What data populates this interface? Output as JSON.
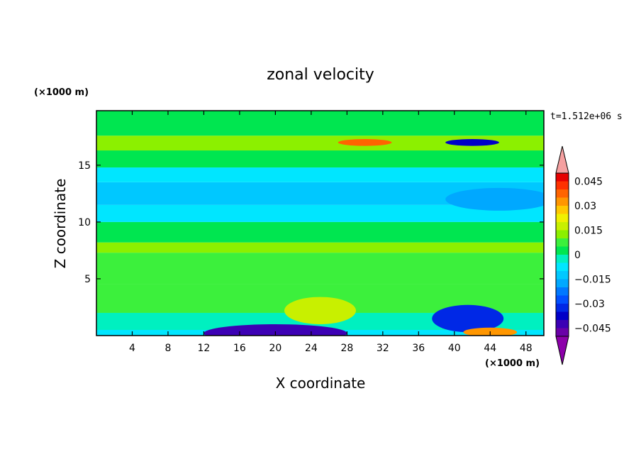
{
  "chart_data": {
    "type": "heatmap",
    "title": "zonal velocity",
    "xlabel": "X coordinate",
    "ylabel": "Z coordinate",
    "x_unit_label": "(×1000 m)",
    "z_unit_label": "(×1000 m)",
    "time_label": "t=1.512e+06 s",
    "xlim": [
      0,
      50
    ],
    "zlim": [
      0,
      19.8
    ],
    "x_ticks": [
      4,
      8,
      12,
      16,
      20,
      24,
      28,
      32,
      36,
      40,
      44,
      48
    ],
    "z_ticks": [
      5,
      10,
      15
    ],
    "grid": false,
    "colorbar": {
      "levels": [
        -0.05,
        -0.045,
        -0.04,
        -0.035,
        -0.03,
        -0.025,
        -0.02,
        -0.015,
        -0.01,
        -0.005,
        0,
        0.005,
        0.01,
        0.015,
        0.02,
        0.025,
        0.03,
        0.035,
        0.04,
        0.045,
        0.05
      ],
      "tick_labels": [
        "0.045",
        "0.03",
        "0.015",
        "0",
        "−0.015",
        "−0.03",
        "−0.045"
      ],
      "tick_values": [
        0.045,
        0.03,
        0.015,
        0,
        -0.015,
        -0.03,
        -0.045
      ],
      "colors": [
        "#6a00a8",
        "#3c00b4",
        "#0000c8",
        "#0028e6",
        "#0050ff",
        "#0078ff",
        "#00a8ff",
        "#00c8ff",
        "#00e6ff",
        "#00f0c0",
        "#00e650",
        "#3cf03c",
        "#8cf000",
        "#c8f000",
        "#f0f000",
        "#ffc800",
        "#ff9600",
        "#ff6400",
        "#ff3200",
        "#e60000"
      ],
      "under_color": "#8c00aa",
      "over_color": "#f5a0a0",
      "placement": "right"
    },
    "bands": [
      {
        "z": [
          0,
          0.5
        ],
        "value": -0.01
      },
      {
        "z": [
          0.5,
          2
        ],
        "value": -0.005
      },
      {
        "z": [
          2,
          4.5
        ],
        "value": 0.005
      },
      {
        "z": [
          4.5,
          7.3
        ],
        "value": 0.008
      },
      {
        "z": [
          7.3,
          8.2
        ],
        "value": 0.012
      },
      {
        "z": [
          8.2,
          10
        ],
        "value": 0.003
      },
      {
        "z": [
          10,
          11.5
        ],
        "value": -0.008
      },
      {
        "z": [
          11.5,
          13.5
        ],
        "value": -0.013
      },
      {
        "z": [
          13.5,
          14.8
        ],
        "value": -0.008
      },
      {
        "z": [
          14.8,
          16.3
        ],
        "value": 0.002
      },
      {
        "z": [
          16.3,
          17.6
        ],
        "value": 0.01
      },
      {
        "z": [
          17.6,
          19.8
        ],
        "value": 0.004
      }
    ],
    "features": [
      {
        "x": 20,
        "z": 0.2,
        "rx": 8,
        "rz": 0.8,
        "value": -0.045
      },
      {
        "x": 41.5,
        "z": 1.5,
        "rx": 4,
        "rz": 1.2,
        "value": -0.035
      },
      {
        "x": 25,
        "z": 2.2,
        "rx": 4,
        "rz": 1.2,
        "value": 0.018
      },
      {
        "x": 44,
        "z": 0.3,
        "rx": 3,
        "rz": 0.4,
        "value": 0.03
      },
      {
        "x": 30,
        "z": 17,
        "rx": 3,
        "rz": 0.3,
        "value": 0.035
      },
      {
        "x": 42,
        "z": 17,
        "rx": 3,
        "rz": 0.3,
        "value": -0.04
      },
      {
        "x": 45,
        "z": 12,
        "rx": 6,
        "rz": 1,
        "value": -0.018
      }
    ]
  }
}
